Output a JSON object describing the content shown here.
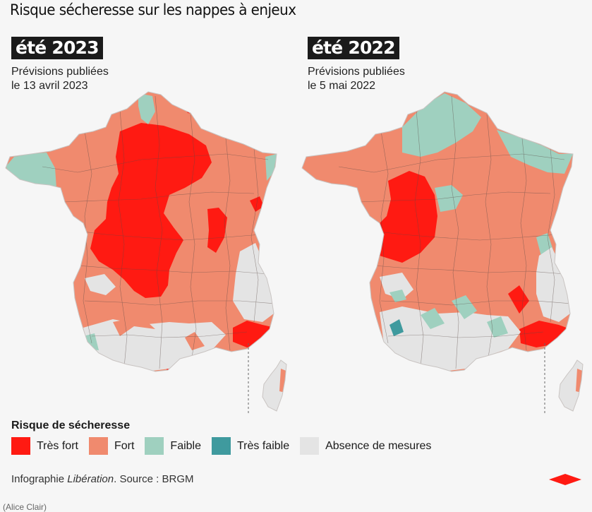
{
  "title": "Risque sécheresse sur les nappes à enjeux",
  "panels": [
    {
      "year": "été 2023",
      "pub_line1": "Prévisions publiées",
      "pub_line2": "le 13 avril 2023"
    },
    {
      "year": "été 2022",
      "pub_line1": "Prévisions publiées",
      "pub_line2": "le 5 mai 2022"
    }
  ],
  "legend": {
    "title": "Risque de sécheresse",
    "items": [
      {
        "label": "Très fort",
        "color": "#ff1a12"
      },
      {
        "label": "Fort",
        "color": "#f08a6e"
      },
      {
        "label": "Faible",
        "color": "#9fd0bf"
      },
      {
        "label": "Très faible",
        "color": "#3f9a9e"
      },
      {
        "label": "Absence de mesures",
        "color": "#e4e4e4"
      }
    ]
  },
  "credit": {
    "prefix": "Infographie ",
    "publication": "Libération",
    "suffix": ". Source : BRGM"
  },
  "author": "(Alice Clair)",
  "colors": {
    "tres_fort": "#ff1a12",
    "fort": "#f08a6e",
    "faible": "#9fd0bf",
    "tres_faible": "#3f9a9e",
    "absence": "#e4e4e4",
    "border": "#5a4a46"
  }
}
